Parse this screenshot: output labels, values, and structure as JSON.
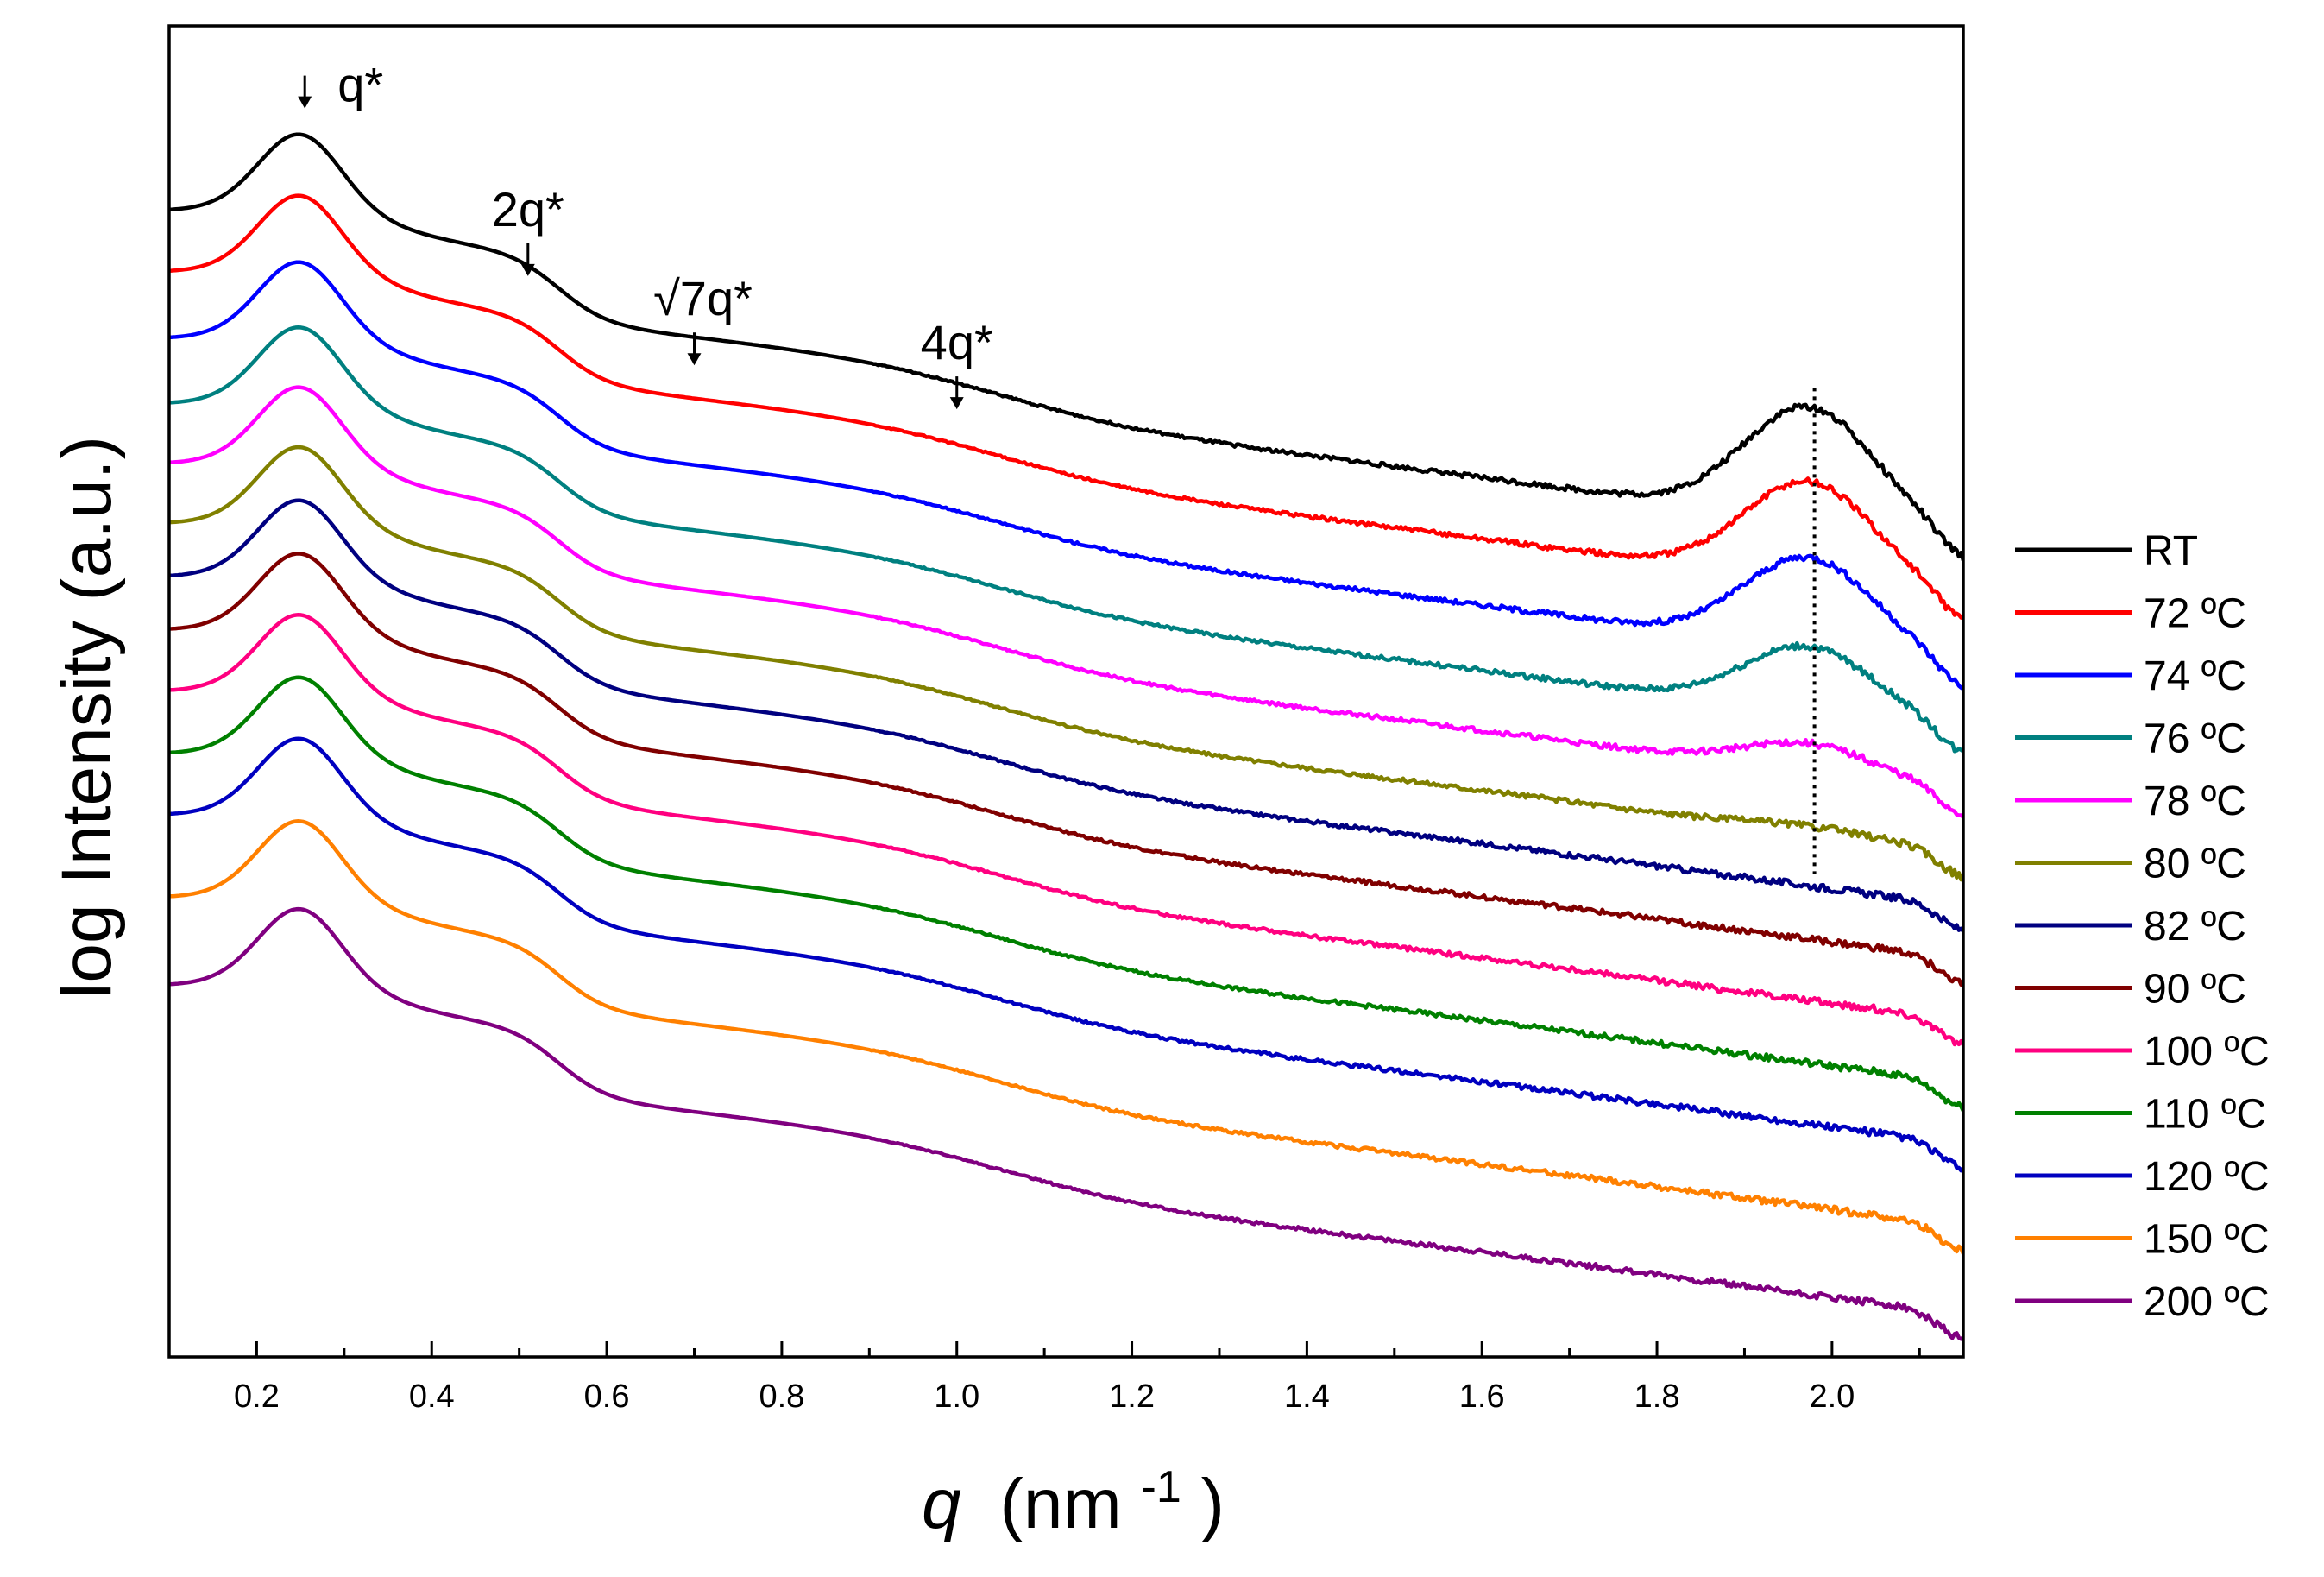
{
  "chart_data": {
    "type": "line",
    "title": "",
    "xlabel": {
      "symbol": "q",
      "unit": "(nm",
      "exponent": "-1",
      "close": ")"
    },
    "ylabel": "log Intensity (a.u.)",
    "xlim": [
      0.1,
      2.15
    ],
    "ylim": [
      0,
      1
    ],
    "grid": false,
    "x_ticks": [
      {
        "value": 0.2,
        "label": "0.2"
      },
      {
        "value": 0.4,
        "label": "0.4"
      },
      {
        "value": 0.6,
        "label": "0.6"
      },
      {
        "value": 0.8,
        "label": "0.8"
      },
      {
        "value": 1.0,
        "label": "1.0"
      },
      {
        "value": 1.2,
        "label": "1.2"
      },
      {
        "value": 1.4,
        "label": "1.4"
      },
      {
        "value": 1.6,
        "label": "1.6"
      },
      {
        "value": 1.8,
        "label": "1.8"
      },
      {
        "value": 2.0,
        "label": "2.0"
      }
    ],
    "x_minor_ticks": [
      0.1,
      0.3,
      0.5,
      0.7,
      0.9,
      1.1,
      1.3,
      1.5,
      1.7,
      1.9,
      2.1
    ],
    "legend_position": "outside-right",
    "annotations": [
      {
        "label": "q*",
        "x": 0.255,
        "arrow_tip": 0.938,
        "label_side": "right"
      },
      {
        "label": "2q*",
        "x": 0.51,
        "arrow_tip": 0.812,
        "label_side": "above"
      },
      {
        "label": "√7q*",
        "x": 0.7,
        "arrow_tip": 0.745,
        "label_side": "above"
      },
      {
        "label": "4q*",
        "x": 1.0,
        "arrow_tip": 0.712,
        "label_side": "above"
      }
    ],
    "reference_line": {
      "x": 1.98,
      "style": "dotted",
      "y_top": 0.728,
      "y_bottom": 0.363
    },
    "series": [
      {
        "name": "RT",
        "color": "#000000",
        "offset": 0.862,
        "dropY": 0.862,
        "peak2": 0.085
      },
      {
        "name": "72 ºC",
        "color": "#ff0000",
        "offset": 0.816,
        "dropY": 0.81,
        "peak2": 0.075
      },
      {
        "name": "74 ºC",
        "color": "#0000ff",
        "offset": 0.766,
        "dropY": 0.752,
        "peak2": 0.068
      },
      {
        "name": "76 ºC",
        "color": "#008080",
        "offset": 0.717,
        "dropY": 0.707,
        "peak2": 0.05
      },
      {
        "name": "78 ºC",
        "color": "#ff00ff",
        "offset": 0.672,
        "dropY": 0.662,
        "peak2": 0.022
      },
      {
        "name": "80 ºC",
        "color": "#808000",
        "offset": 0.627,
        "dropY": 0.615,
        "peak2": 0.005
      },
      {
        "name": "82 ºC",
        "color": "#000080",
        "offset": 0.587,
        "dropY": 0.583,
        "peak2": 0.0
      },
      {
        "name": "90 ºC",
        "color": "#800000",
        "offset": 0.547,
        "dropY": 0.544,
        "peak2": 0.0
      },
      {
        "name": "100 ºC",
        "color": "#ff0080",
        "offset": 0.501,
        "dropY": 0.497,
        "peak2": 0.0
      },
      {
        "name": "110 ºC",
        "color": "#008000",
        "offset": 0.454,
        "dropY": 0.45,
        "peak2": 0.0
      },
      {
        "name": "120 ºC",
        "color": "#0000c0",
        "offset": 0.408,
        "dropY": 0.403,
        "peak2": 0.0
      },
      {
        "name": "150 ºC",
        "color": "#ff8000",
        "offset": 0.346,
        "dropY": 0.356,
        "peak2": 0.0
      },
      {
        "name": "200 ºC",
        "color": "#800080",
        "offset": 0.28,
        "dropY": 0.306,
        "peak2": 0.0
      }
    ]
  }
}
